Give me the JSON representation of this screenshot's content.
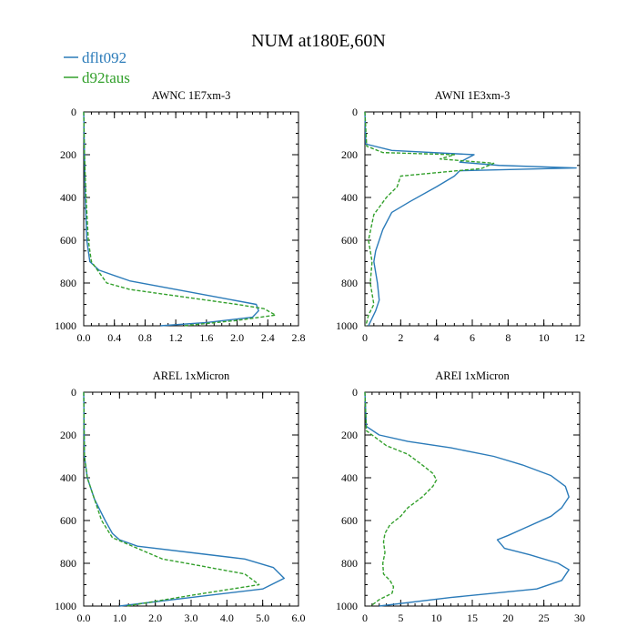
{
  "title": "NUM at180E,60N",
  "legend": [
    {
      "name": "dflt092",
      "color": "#2b7bb9",
      "dash": "solid"
    },
    {
      "name": "d92taus",
      "color": "#33a02c",
      "dash": "dashed"
    }
  ],
  "chart_data": [
    {
      "type": "line",
      "title": "AWNC  1E7xm-3",
      "xlim": [
        0,
        2.8
      ],
      "ylim": [
        1000,
        0
      ],
      "xticks": [
        0.0,
        0.4,
        0.8,
        1.2,
        1.6,
        2.0,
        2.4,
        2.8
      ],
      "xtick_labels": [
        "0.0",
        "0.4",
        "0.8",
        "1.2",
        "1.6",
        "2.0",
        "2.4",
        "2.8"
      ],
      "xminor": 0.1,
      "yticks": [
        0,
        200,
        400,
        600,
        800,
        1000
      ],
      "ytick_labels": [
        "0",
        "200",
        "400",
        "600",
        "800",
        "1000"
      ],
      "yminor": 50,
      "series": [
        {
          "name": "dflt092",
          "points": [
            [
              0,
              0
            ],
            [
              0.01,
              200
            ],
            [
              0.02,
              400
            ],
            [
              0.04,
              600
            ],
            [
              0.08,
              700
            ],
            [
              0.2,
              740
            ],
            [
              0.6,
              790
            ],
            [
              1.2,
              830
            ],
            [
              1.8,
              870
            ],
            [
              2.25,
              900
            ],
            [
              2.28,
              930
            ],
            [
              2.2,
              960
            ],
            [
              1.6,
              985
            ],
            [
              1.0,
              1000
            ]
          ]
        },
        {
          "name": "d92taus",
          "points": [
            [
              0,
              0
            ],
            [
              0.01,
              200
            ],
            [
              0.03,
              400
            ],
            [
              0.06,
              600
            ],
            [
              0.1,
              700
            ],
            [
              0.2,
              750
            ],
            [
              0.3,
              800
            ],
            [
              0.6,
              830
            ],
            [
              1.2,
              860
            ],
            [
              2.0,
              900
            ],
            [
              2.35,
              920
            ],
            [
              2.5,
              950
            ],
            [
              2.0,
              975
            ],
            [
              1.3,
              1000
            ]
          ]
        }
      ]
    },
    {
      "type": "line",
      "title": "AWNI  1E3xm-3",
      "xlim": [
        0,
        12
      ],
      "ylim": [
        1000,
        0
      ],
      "xticks": [
        0,
        2,
        4,
        6,
        8,
        10,
        12
      ],
      "xtick_labels": [
        "0",
        "2",
        "4",
        "6",
        "8",
        "10",
        "12"
      ],
      "xminor": 0.5,
      "yticks": [
        0,
        200,
        400,
        600,
        800,
        1000
      ],
      "ytick_labels": [
        "0",
        "200",
        "400",
        "600",
        "800",
        "1000"
      ],
      "yminor": 50,
      "series": [
        {
          "name": "dflt092",
          "points": [
            [
              0,
              0
            ],
            [
              0.05,
              150
            ],
            [
              1.5,
              180
            ],
            [
              6.1,
              200
            ],
            [
              5.3,
              235
            ],
            [
              7.5,
              250
            ],
            [
              11.8,
              262
            ],
            [
              5.3,
              275
            ],
            [
              5.0,
              300
            ],
            [
              4.0,
              350
            ],
            [
              2.5,
              420
            ],
            [
              1.5,
              470
            ],
            [
              1.0,
              550
            ],
            [
              0.6,
              650
            ],
            [
              0.5,
              700
            ],
            [
              0.7,
              800
            ],
            [
              0.8,
              880
            ],
            [
              0.6,
              930
            ],
            [
              0.2,
              1000
            ]
          ]
        },
        {
          "name": "d92taus",
          "points": [
            [
              0,
              0
            ],
            [
              0.1,
              160
            ],
            [
              1.0,
              190
            ],
            [
              5.0,
              200
            ],
            [
              4.2,
              220
            ],
            [
              7.2,
              240
            ],
            [
              6.5,
              265
            ],
            [
              5.8,
              270
            ],
            [
              2.0,
              300
            ],
            [
              1.8,
              350
            ],
            [
              1.2,
              400
            ],
            [
              0.5,
              480
            ],
            [
              0.3,
              560
            ],
            [
              0.2,
              600
            ],
            [
              0.4,
              700
            ],
            [
              0.3,
              800
            ],
            [
              0.5,
              900
            ],
            [
              0.2,
              950
            ],
            [
              0.05,
              1000
            ]
          ]
        }
      ]
    },
    {
      "type": "line",
      "title": "AREL  1xMicron",
      "xlim": [
        0,
        6
      ],
      "ylim": [
        1000,
        0
      ],
      "xticks": [
        0,
        1,
        2,
        3,
        4,
        5,
        6
      ],
      "xtick_labels": [
        "0.0",
        "1.0",
        "2.0",
        "3.0",
        "4.0",
        "5.0",
        "6.0"
      ],
      "xminor": 0.25,
      "yticks": [
        0,
        200,
        400,
        600,
        800,
        1000
      ],
      "ytick_labels": [
        "0",
        "200",
        "400",
        "600",
        "800",
        "1000"
      ],
      "yminor": 50,
      "series": [
        {
          "name": "dflt092",
          "points": [
            [
              0,
              0
            ],
            [
              0.02,
              300
            ],
            [
              0.1,
              400
            ],
            [
              0.3,
              500
            ],
            [
              0.6,
              600
            ],
            [
              0.8,
              660
            ],
            [
              1.0,
              690
            ],
            [
              1.5,
              720
            ],
            [
              3.0,
              750
            ],
            [
              4.5,
              780
            ],
            [
              5.3,
              820
            ],
            [
              5.6,
              870
            ],
            [
              5.0,
              920
            ],
            [
              3.0,
              960
            ],
            [
              1.0,
              1000
            ]
          ]
        },
        {
          "name": "d92taus",
          "points": [
            [
              0,
              0
            ],
            [
              0.02,
              300
            ],
            [
              0.1,
              400
            ],
            [
              0.3,
              500
            ],
            [
              0.5,
              600
            ],
            [
              0.8,
              680
            ],
            [
              1.5,
              730
            ],
            [
              2.2,
              780
            ],
            [
              3.2,
              810
            ],
            [
              4.5,
              850
            ],
            [
              4.9,
              900
            ],
            [
              3.0,
              950
            ],
            [
              1.2,
              1000
            ]
          ]
        }
      ]
    },
    {
      "type": "line",
      "title": "AREI  1xMicron",
      "xlim": [
        0,
        30
      ],
      "ylim": [
        1000,
        0
      ],
      "xticks": [
        0,
        5,
        10,
        15,
        20,
        25,
        30
      ],
      "xtick_labels": [
        "0",
        "5",
        "10",
        "15",
        "20",
        "25",
        "30"
      ],
      "xminor": 1,
      "yticks": [
        0,
        200,
        400,
        600,
        800,
        1000
      ],
      "ytick_labels": [
        "0",
        "200",
        "400",
        "600",
        "800",
        "1000"
      ],
      "yminor": 50,
      "series": [
        {
          "name": "dflt092",
          "points": [
            [
              0,
              0
            ],
            [
              0.2,
              160
            ],
            [
              2,
              200
            ],
            [
              6,
              230
            ],
            [
              12,
              260
            ],
            [
              18,
              300
            ],
            [
              22,
              340
            ],
            [
              26,
              390
            ],
            [
              28,
              440
            ],
            [
              28.5,
              490
            ],
            [
              27.5,
              540
            ],
            [
              26,
              580
            ],
            [
              22,
              640
            ],
            [
              20,
              670
            ],
            [
              18.5,
              690
            ],
            [
              19.5,
              730
            ],
            [
              23,
              760
            ],
            [
              27,
              800
            ],
            [
              28.5,
              830
            ],
            [
              27.5,
              880
            ],
            [
              24,
              920
            ],
            [
              12,
              960
            ],
            [
              2,
              1000
            ]
          ]
        },
        {
          "name": "d92taus",
          "points": [
            [
              0,
              0
            ],
            [
              0.2,
              180
            ],
            [
              1,
              200
            ],
            [
              3,
              250
            ],
            [
              6,
              290
            ],
            [
              8,
              340
            ],
            [
              9.5,
              380
            ],
            [
              10,
              410
            ],
            [
              9.5,
              440
            ],
            [
              8,
              490
            ],
            [
              6,
              540
            ],
            [
              5,
              580
            ],
            [
              3.5,
              620
            ],
            [
              2.8,
              660
            ],
            [
              2.6,
              700
            ],
            [
              2.8,
              750
            ],
            [
              2.5,
              800
            ],
            [
              2.6,
              850
            ],
            [
              3.5,
              880
            ],
            [
              4.0,
              910
            ],
            [
              3.8,
              940
            ],
            [
              2.0,
              970
            ],
            [
              0.8,
              1000
            ]
          ]
        }
      ]
    }
  ]
}
